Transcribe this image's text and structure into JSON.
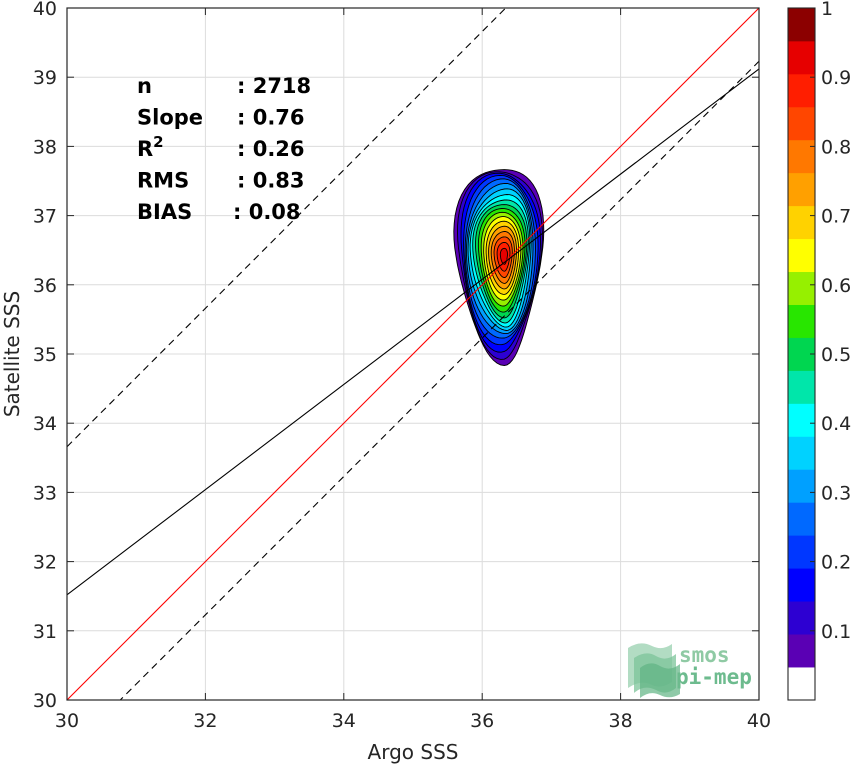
{
  "chart_data": {
    "type": "contour-scatter",
    "xlabel": "Argo SSS",
    "ylabel": "Satellite SSS",
    "xlim": [
      30,
      40
    ],
    "ylim": [
      30,
      40
    ],
    "xticks": [
      "30",
      "32",
      "34",
      "36",
      "38",
      "40"
    ],
    "yticks": [
      "30",
      "31",
      "32",
      "33",
      "34",
      "35",
      "36",
      "37",
      "38",
      "39",
      "40"
    ],
    "grid": true,
    "stats": [
      {
        "label": "n",
        "value": ": 2718"
      },
      {
        "label": "Slope",
        "value": ": 0.76"
      },
      {
        "label": "R",
        "sup": "2",
        "value": ": 0.26"
      },
      {
        "label": "RMS",
        "value": ": 0.83"
      },
      {
        "label": "BIAS",
        "value": ": 0.08"
      }
    ],
    "reference_lines": [
      {
        "kind": "one-to-one",
        "slope": 1,
        "intercept": 0,
        "color": "#ff0000",
        "dash": false
      },
      {
        "kind": "regression",
        "slope": 0.76,
        "intercept": 8.72,
        "color": "#000000",
        "dash": false
      },
      {
        "kind": "offset-upper",
        "slope": 1,
        "intercept": 3.66,
        "color": "#000000",
        "dash": true
      },
      {
        "kind": "offset-lower",
        "slope": 1,
        "intercept": -0.77,
        "color": "#000000",
        "dash": true
      }
    ],
    "density_center": [
      36.32,
      36.42
    ],
    "density_extent": {
      "x_min": 35.62,
      "x_max": 36.86,
      "y_min": 34.91,
      "y_max": 37.73
    },
    "contour_levels": [
      0.05,
      0.1,
      0.15,
      0.2,
      0.25,
      0.3,
      0.35,
      0.4,
      0.45,
      0.5,
      0.55,
      0.6,
      0.65,
      0.7,
      0.75,
      0.8,
      0.85,
      0.9,
      0.95
    ],
    "colorbar": {
      "range": [
        0,
        1
      ],
      "ticks": [
        "0.1",
        "0.2",
        "0.3",
        "0.4",
        "0.5",
        "0.6",
        "0.7",
        "0.8",
        "0.9",
        "1"
      ],
      "colors": [
        "#ffffff",
        "#5a00b4",
        "#2d00d2",
        "#0000ff",
        "#0037ff",
        "#0069ff",
        "#00a0ff",
        "#00d2ff",
        "#00ffff",
        "#00e6aa",
        "#00d650",
        "#28e600",
        "#96f000",
        "#ffff00",
        "#ffd200",
        "#ffa000",
        "#ff7800",
        "#ff4600",
        "#ff1e00",
        "#e60000",
        "#8c0000"
      ]
    }
  },
  "logo": {
    "icon": "smos-wave-icon",
    "line1": "smos",
    "line2": "pi-mep"
  }
}
